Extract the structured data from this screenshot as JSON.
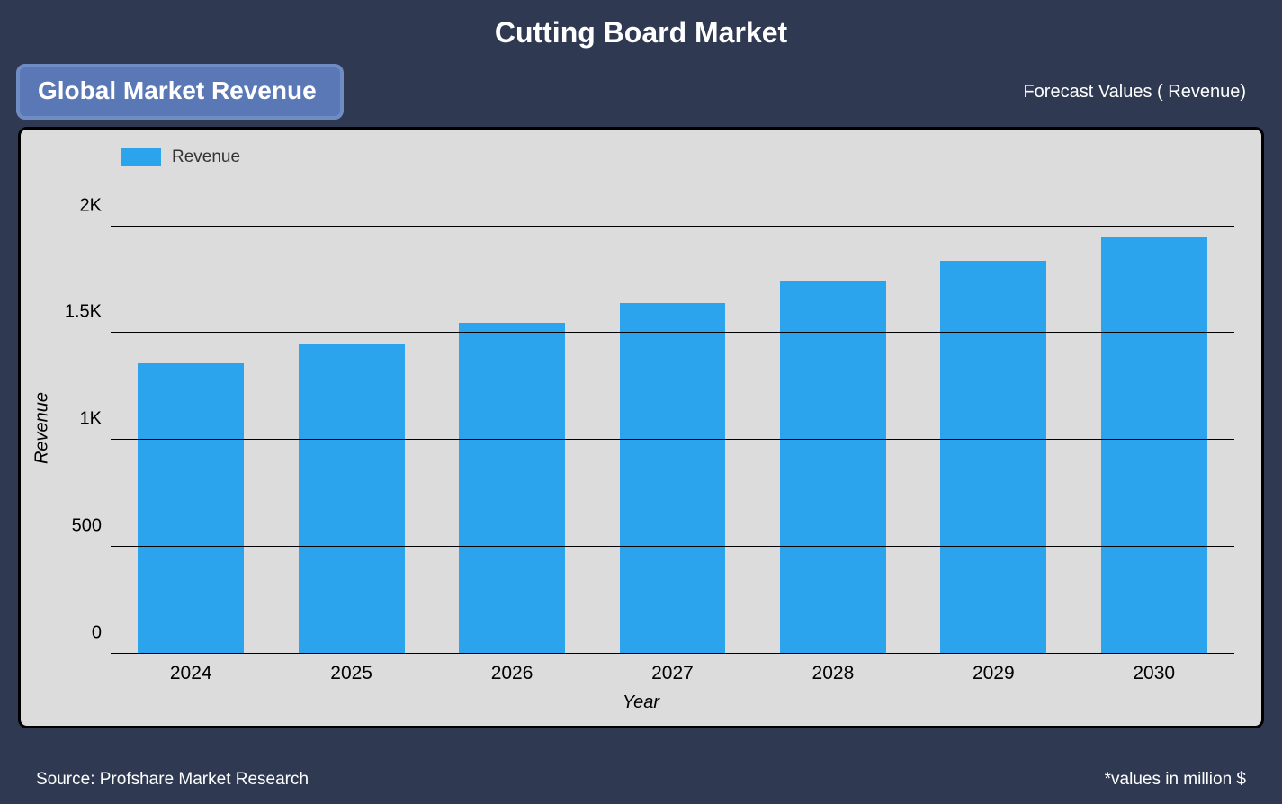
{
  "title": "Cutting Board Market",
  "badge_label": "Global Market Revenue",
  "forecast_label": "Forecast Values ( Revenue)",
  "footer_left": "Source: Profshare Market Research",
  "footer_right": "*values in million $",
  "chart": {
    "type": "bar",
    "legend_label": "Revenue",
    "legend_color": "#2ba3ed",
    "bar_color": "#2ba3ed",
    "panel_background": "#dcdcdc",
    "panel_border_color": "#000000",
    "page_background": "#2f3a52",
    "badge_background": "#5a78b6",
    "badge_border": "#6f8cc5",
    "grid_color": "#000000",
    "xlabel": "Year",
    "ylabel": "Revenue",
    "xlabel_fontstyle": "italic",
    "ylabel_fontstyle": "italic",
    "axis_fontsize": 20,
    "tick_fontsize": 20,
    "title_fontsize": 32,
    "badge_fontsize": 28,
    "bar_width": 0.66,
    "ylim": [
      0,
      2200
    ],
    "yticks": [
      {
        "value": 0,
        "label": "0"
      },
      {
        "value": 500,
        "label": "500"
      },
      {
        "value": 1000,
        "label": "1K"
      },
      {
        "value": 1500,
        "label": "1.5K"
      },
      {
        "value": 2000,
        "label": "2K"
      }
    ],
    "categories": [
      "2024",
      "2025",
      "2026",
      "2027",
      "2028",
      "2029",
      "2030"
    ],
    "values": [
      1360,
      1450,
      1550,
      1640,
      1740,
      1840,
      1950
    ]
  }
}
